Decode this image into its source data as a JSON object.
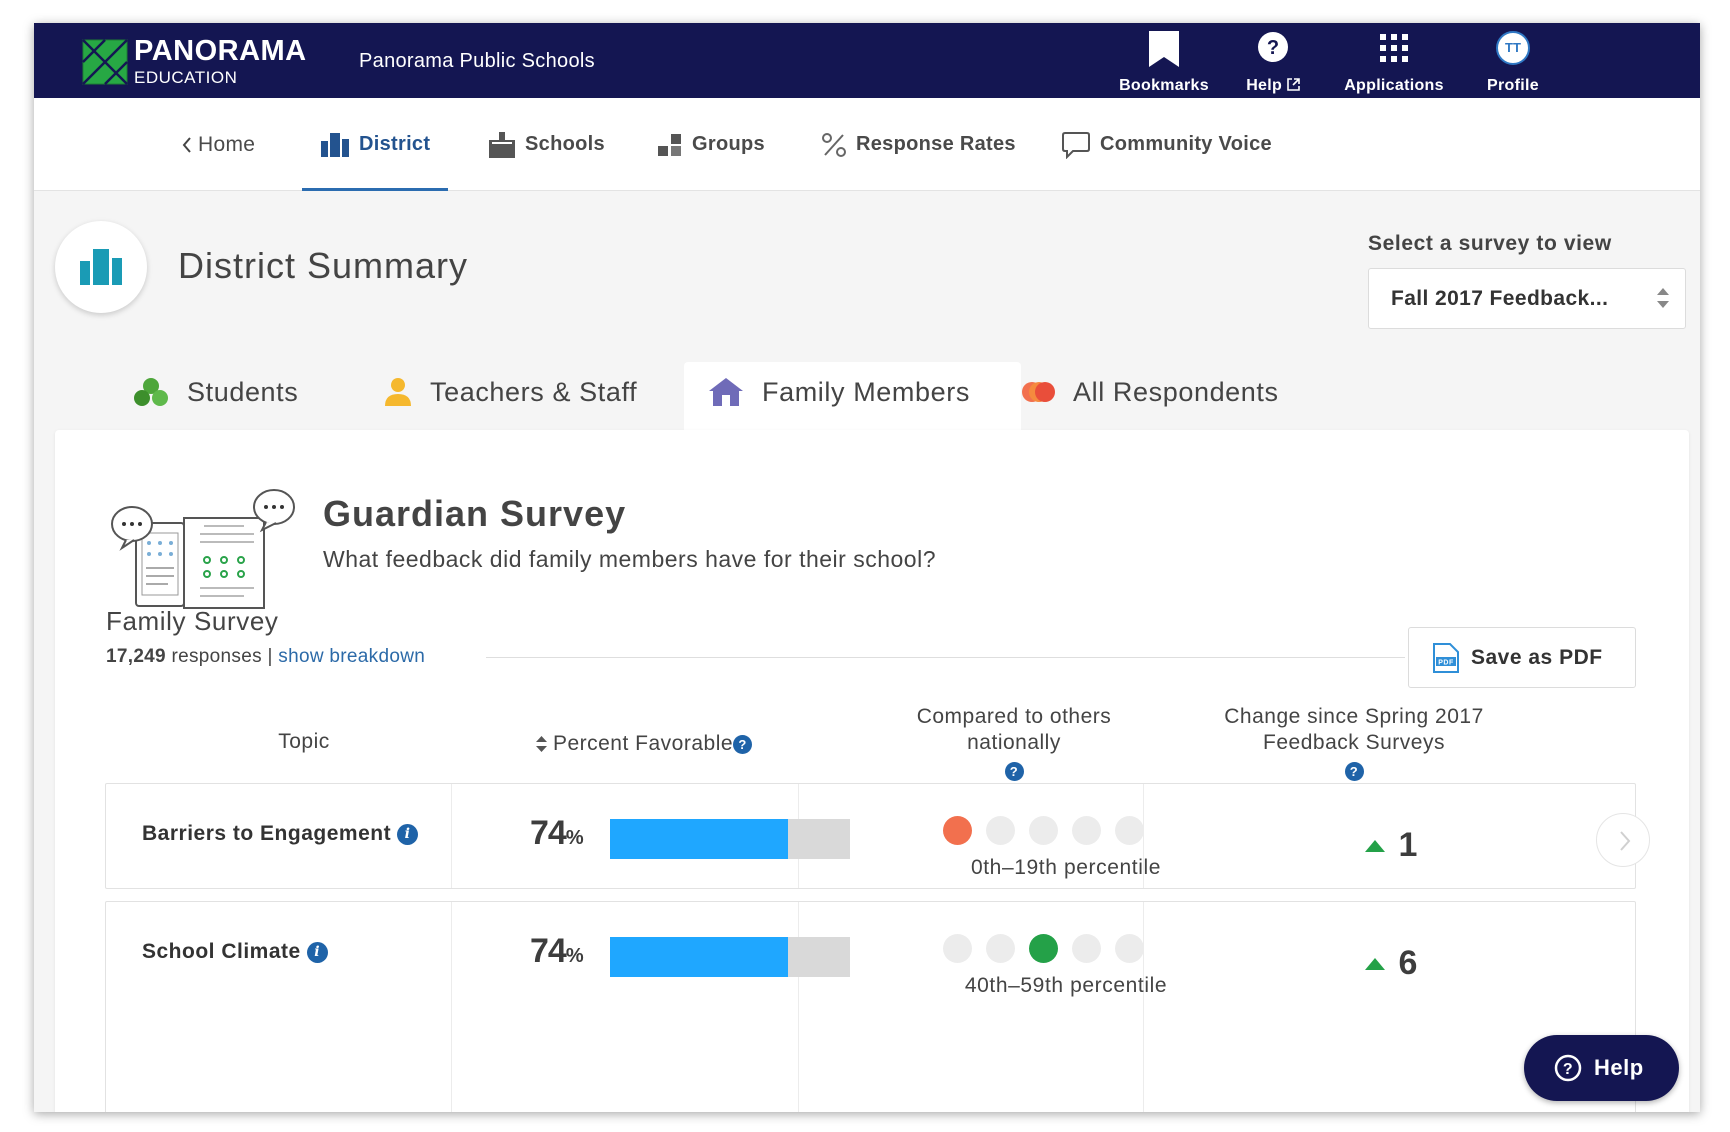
{
  "brand": {
    "name": "PANORAMA",
    "sub": "EDUCATION"
  },
  "org_name": "Panorama Public Schools",
  "topnav": {
    "bookmarks": "Bookmarks",
    "help": "Help",
    "applications": "Applications",
    "profile": "Profile",
    "profile_initials": "TT"
  },
  "subnav": {
    "home": "Home",
    "district": "District",
    "schools": "Schools",
    "groups": "Groups",
    "response_rates": "Response Rates",
    "community_voice": "Community Voice"
  },
  "page_title": "District Summary",
  "survey_select": {
    "label": "Select a survey to view",
    "value": "Fall 2017 Feedback..."
  },
  "audience_tabs": {
    "students": "Students",
    "teachers": "Teachers & Staff",
    "family": "Family Members",
    "all": "All Respondents",
    "active": "family"
  },
  "survey": {
    "title": "Guardian Survey",
    "question": "What feedback did family members have for their school?",
    "name": "Family Survey",
    "responses_count": "17,249",
    "responses_word": "responses |",
    "breakdown_link": "show breakdown",
    "pdf_label": "Save as PDF"
  },
  "table": {
    "col_topic": "Topic",
    "col_percent": "Percent Favorable",
    "col_compared_1": "Compared to others",
    "col_compared_2": "nationally",
    "col_change_1": "Change since Spring 2017",
    "col_change_2": "Feedback Surveys",
    "qmark": "?",
    "info": "i",
    "rows": [
      {
        "topic": "Barriers to Engagement",
        "percent": "74",
        "percent_unit": "%",
        "favorable_fraction": 0.74,
        "percentile_bucket": 1,
        "percentile_color": "#f2704e",
        "percentile": "0th–19th percentile",
        "change": "1"
      },
      {
        "topic": "School Climate",
        "percent": "74",
        "percent_unit": "%",
        "favorable_fraction": 0.74,
        "percentile_bucket": 3,
        "percentile_color": "#24a148",
        "percentile": "40th–59th percentile",
        "change": "6"
      }
    ]
  },
  "help_fab": "Help",
  "colors": {
    "navy": "#141652",
    "accent_blue": "#1fa7ff",
    "link_blue": "#2c6aa8",
    "teal": "#1a9bb5"
  }
}
